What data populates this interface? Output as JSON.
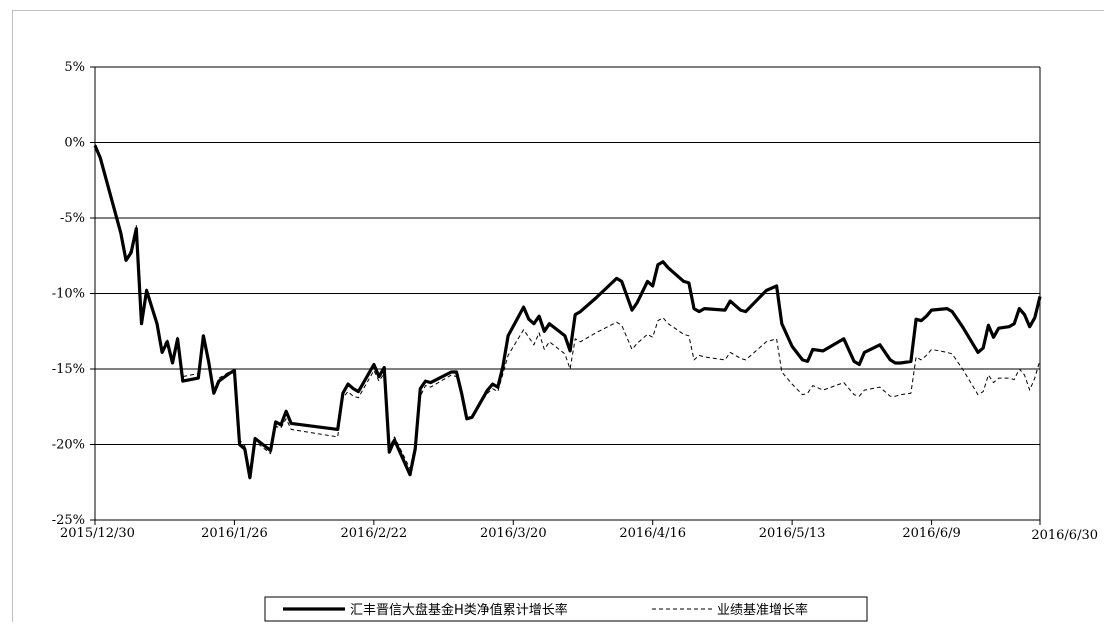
{
  "chart_data": {
    "type": "line",
    "title": "",
    "xlabel": "",
    "ylabel": "",
    "x_tick_labels": [
      "2015/12/30",
      "2016/1/26",
      "2016/2/22",
      "2016/3/20",
      "2016/4/16",
      "2016/5/13",
      "2016/6/9",
      "2016/6/30"
    ],
    "x_range": [
      "2015/12/30",
      "2016/6/30"
    ],
    "y_tick_labels": [
      "5%",
      "0%",
      "-5%",
      "-10%",
      "-15%",
      "-20%",
      "-25%"
    ],
    "ylim": [
      -25,
      5
    ],
    "y_unit": "%",
    "grid": "horizontal",
    "legend_position": "bottom",
    "series": [
      {
        "name": "汇丰晋信大盘基金H类净值累计增长率",
        "style": "solid-thick",
        "color": "#000000",
        "points": [
          [
            "2015/12/30",
            -0.2
          ],
          [
            "2015/12/31",
            -1.0
          ],
          [
            "2016/1/4",
            -6.0
          ],
          [
            "2016/1/5",
            -7.8
          ],
          [
            "2016/1/6",
            -7.3
          ],
          [
            "2016/1/7",
            -5.7
          ],
          [
            "2016/1/8",
            -12.0
          ],
          [
            "2016/1/9",
            -9.8
          ],
          [
            "2016/1/11",
            -12.0
          ],
          [
            "2016/1/12",
            -13.9
          ],
          [
            "2016/1/13",
            -13.2
          ],
          [
            "2016/1/14",
            -14.6
          ],
          [
            "2016/1/15",
            -13.0
          ],
          [
            "2016/1/16",
            -15.8
          ],
          [
            "2016/1/19",
            -15.6
          ],
          [
            "2016/1/20",
            -12.8
          ],
          [
            "2016/1/21",
            -14.5
          ],
          [
            "2016/1/22",
            -16.6
          ],
          [
            "2016/1/23",
            -15.8
          ],
          [
            "2016/1/25",
            -15.3
          ],
          [
            "2016/1/26",
            -15.1
          ],
          [
            "2016/1/27",
            -20.0
          ],
          [
            "2016/1/28",
            -20.3
          ],
          [
            "2016/1/29",
            -22.2
          ],
          [
            "2016/1/30",
            -19.6
          ],
          [
            "2016/2/2",
            -20.4
          ],
          [
            "2016/2/3",
            -18.5
          ],
          [
            "2016/2/4",
            -18.7
          ],
          [
            "2016/2/5",
            -17.8
          ],
          [
            "2016/2/6",
            -18.6
          ],
          [
            "2016/2/15",
            -19.0
          ],
          [
            "2016/2/16",
            -16.6
          ],
          [
            "2016/2/17",
            -16.0
          ],
          [
            "2016/2/18",
            -16.3
          ],
          [
            "2016/2/19",
            -16.5
          ],
          [
            "2016/2/22",
            -14.7
          ],
          [
            "2016/2/23",
            -15.5
          ],
          [
            "2016/2/24",
            -14.9
          ],
          [
            "2016/2/25",
            -20.5
          ],
          [
            "2016/2/26",
            -19.7
          ],
          [
            "2016/2/29",
            -22.0
          ],
          [
            "2016/3/1",
            -20.3
          ],
          [
            "2016/3/2",
            -16.3
          ],
          [
            "2016/3/3",
            -15.8
          ],
          [
            "2016/3/4",
            -15.9
          ],
          [
            "2016/3/8",
            -15.2
          ],
          [
            "2016/3/9",
            -15.2
          ],
          [
            "2016/3/10",
            -16.6
          ],
          [
            "2016/3/11",
            -18.3
          ],
          [
            "2016/3/12",
            -18.2
          ],
          [
            "2016/3/15",
            -16.4
          ],
          [
            "2016/3/16",
            -16.0
          ],
          [
            "2016/3/17",
            -16.2
          ],
          [
            "2016/3/18",
            -14.8
          ],
          [
            "2016/3/19",
            -12.8
          ],
          [
            "2016/3/22",
            -10.9
          ],
          [
            "2016/3/23",
            -11.7
          ],
          [
            "2016/3/24",
            -12.0
          ],
          [
            "2016/3/25",
            -11.5
          ],
          [
            "2016/3/26",
            -12.5
          ],
          [
            "2016/3/27",
            -12.0
          ],
          [
            "2016/3/30",
            -12.8
          ],
          [
            "2016/3/31",
            -13.8
          ],
          [
            "2016/4/1",
            -11.4
          ],
          [
            "2016/4/2",
            -11.2
          ],
          [
            "2016/4/5",
            -10.3
          ],
          [
            "2016/4/9",
            -9.0
          ],
          [
            "2016/4/10",
            -9.2
          ],
          [
            "2016/4/12",
            -11.1
          ],
          [
            "2016/4/13",
            -10.6
          ],
          [
            "2016/4/15",
            -9.2
          ],
          [
            "2016/4/16",
            -9.5
          ],
          [
            "2016/4/17",
            -8.1
          ],
          [
            "2016/4/18",
            -7.9
          ],
          [
            "2016/4/19",
            -8.3
          ],
          [
            "2016/4/22",
            -9.2
          ],
          [
            "2016/4/23",
            -9.3
          ],
          [
            "2016/4/24",
            -11.0
          ],
          [
            "2016/4/25",
            -11.2
          ],
          [
            "2016/4/26",
            -11.0
          ],
          [
            "2016/4/30",
            -11.1
          ],
          [
            "2016/5/1",
            -10.5
          ],
          [
            "2016/5/3",
            -11.1
          ],
          [
            "2016/5/4",
            -11.2
          ],
          [
            "2016/5/8",
            -9.8
          ],
          [
            "2016/5/10",
            -9.5
          ],
          [
            "2016/5/11",
            -12.0
          ],
          [
            "2016/5/13",
            -13.5
          ],
          [
            "2016/5/15",
            -14.4
          ],
          [
            "2016/5/16",
            -14.5
          ],
          [
            "2016/5/17",
            -13.7
          ],
          [
            "2016/5/19",
            -13.8
          ],
          [
            "2016/5/23",
            -13.0
          ],
          [
            "2016/5/25",
            -14.5
          ],
          [
            "2016/5/26",
            -14.7
          ],
          [
            "2016/5/27",
            -13.9
          ],
          [
            "2016/5/30",
            -13.4
          ],
          [
            "2016/6/1",
            -14.4
          ],
          [
            "2016/6/2",
            -14.6
          ],
          [
            "2016/6/3",
            -14.6
          ],
          [
            "2016/6/5",
            -14.5
          ],
          [
            "2016/6/6",
            -11.7
          ],
          [
            "2016/6/7",
            -11.8
          ],
          [
            "2016/6/8",
            -11.5
          ],
          [
            "2016/6/9",
            -11.1
          ],
          [
            "2016/6/12",
            -11.0
          ],
          [
            "2016/6/13",
            -11.2
          ],
          [
            "2016/6/15",
            -12.2
          ],
          [
            "2016/6/18",
            -13.9
          ],
          [
            "2016/6/19",
            -13.6
          ],
          [
            "2016/6/20",
            -12.1
          ],
          [
            "2016/6/21",
            -12.9
          ],
          [
            "2016/6/22",
            -12.3
          ],
          [
            "2016/6/24",
            -12.2
          ],
          [
            "2016/6/25",
            -12.0
          ],
          [
            "2016/6/26",
            -11.0
          ],
          [
            "2016/6/27",
            -11.4
          ],
          [
            "2016/6/28",
            -12.2
          ],
          [
            "2016/6/29",
            -11.6
          ],
          [
            "2016/6/30",
            -10.2
          ]
        ]
      },
      {
        "name": "业绩基准增长率",
        "style": "dashed-thin",
        "color": "#000000",
        "points": [
          [
            "2015/12/30",
            -0.1
          ],
          [
            "2015/12/31",
            -0.9
          ],
          [
            "2016/1/4",
            -5.8
          ],
          [
            "2016/1/5",
            -7.7
          ],
          [
            "2016/1/6",
            -7.1
          ],
          [
            "2016/1/7",
            -5.5
          ],
          [
            "2016/1/8",
            -11.8
          ],
          [
            "2016/1/9",
            -9.7
          ],
          [
            "2016/1/11",
            -11.8
          ],
          [
            "2016/1/12",
            -13.7
          ],
          [
            "2016/1/13",
            -13.0
          ],
          [
            "2016/1/14",
            -14.4
          ],
          [
            "2016/1/15",
            -12.9
          ],
          [
            "2016/1/16",
            -15.5
          ],
          [
            "2016/1/19",
            -15.3
          ],
          [
            "2016/1/20",
            -12.9
          ],
          [
            "2016/1/21",
            -14.3
          ],
          [
            "2016/1/22",
            -16.4
          ],
          [
            "2016/1/23",
            -15.6
          ],
          [
            "2016/1/25",
            -15.2
          ],
          [
            "2016/1/26",
            -15.2
          ],
          [
            "2016/1/27",
            -19.7
          ],
          [
            "2016/1/28",
            -20.1
          ],
          [
            "2016/1/29",
            -21.8
          ],
          [
            "2016/1/30",
            -19.8
          ],
          [
            "2016/2/2",
            -20.6
          ],
          [
            "2016/2/3",
            -18.8
          ],
          [
            "2016/2/4",
            -18.9
          ],
          [
            "2016/2/5",
            -18.3
          ],
          [
            "2016/2/6",
            -19.0
          ],
          [
            "2016/2/15",
            -19.5
          ],
          [
            "2016/2/16",
            -16.9
          ],
          [
            "2016/2/17",
            -16.5
          ],
          [
            "2016/2/18",
            -16.8
          ],
          [
            "2016/2/19",
            -16.9
          ],
          [
            "2016/2/22",
            -15.1
          ],
          [
            "2016/2/23",
            -15.8
          ],
          [
            "2016/2/24",
            -15.3
          ],
          [
            "2016/2/25",
            -20.2
          ],
          [
            "2016/2/26",
            -19.5
          ],
          [
            "2016/2/29",
            -21.6
          ],
          [
            "2016/3/1",
            -20.0
          ],
          [
            "2016/3/2",
            -16.8
          ],
          [
            "2016/3/3",
            -16.1
          ],
          [
            "2016/3/4",
            -16.2
          ],
          [
            "2016/3/8",
            -15.4
          ],
          [
            "2016/3/9",
            -15.5
          ],
          [
            "2016/3/10",
            -16.7
          ],
          [
            "2016/3/11",
            -18.2
          ],
          [
            "2016/3/12",
            -18.1
          ],
          [
            "2016/3/15",
            -16.6
          ],
          [
            "2016/3/16",
            -16.3
          ],
          [
            "2016/3/17",
            -16.5
          ],
          [
            "2016/3/18",
            -15.3
          ],
          [
            "2016/3/19",
            -14.1
          ],
          [
            "2016/3/22",
            -12.4
          ],
          [
            "2016/3/23",
            -12.9
          ],
          [
            "2016/3/24",
            -13.4
          ],
          [
            "2016/3/25",
            -12.6
          ],
          [
            "2016/3/26",
            -13.7
          ],
          [
            "2016/3/27",
            -13.2
          ],
          [
            "2016/3/30",
            -14.0
          ],
          [
            "2016/3/31",
            -15.0
          ],
          [
            "2016/4/1",
            -13.0
          ],
          [
            "2016/4/2",
            -13.2
          ],
          [
            "2016/4/5",
            -12.6
          ],
          [
            "2016/4/9",
            -11.9
          ],
          [
            "2016/4/10",
            -12.1
          ],
          [
            "2016/4/12",
            -13.7
          ],
          [
            "2016/4/13",
            -13.3
          ],
          [
            "2016/4/15",
            -12.7
          ],
          [
            "2016/4/16",
            -12.9
          ],
          [
            "2016/4/17",
            -11.8
          ],
          [
            "2016/4/18",
            -11.6
          ],
          [
            "2016/4/19",
            -12.0
          ],
          [
            "2016/4/22",
            -12.7
          ],
          [
            "2016/4/23",
            -12.8
          ],
          [
            "2016/4/24",
            -14.4
          ],
          [
            "2016/4/25",
            -14.1
          ],
          [
            "2016/4/26",
            -14.2
          ],
          [
            "2016/4/30",
            -14.4
          ],
          [
            "2016/5/1",
            -13.9
          ],
          [
            "2016/5/3",
            -14.3
          ],
          [
            "2016/5/4",
            -14.4
          ],
          [
            "2016/5/8",
            -13.2
          ],
          [
            "2016/5/10",
            -13.0
          ],
          [
            "2016/5/11",
            -15.2
          ],
          [
            "2016/5/13",
            -16.0
          ],
          [
            "2016/5/15",
            -16.7
          ],
          [
            "2016/5/16",
            -16.6
          ],
          [
            "2016/5/17",
            -16.1
          ],
          [
            "2016/5/19",
            -16.4
          ],
          [
            "2016/5/23",
            -15.9
          ],
          [
            "2016/5/25",
            -16.7
          ],
          [
            "2016/5/26",
            -16.8
          ],
          [
            "2016/5/27",
            -16.4
          ],
          [
            "2016/5/30",
            -16.2
          ],
          [
            "2016/6/1",
            -16.8
          ],
          [
            "2016/6/2",
            -16.8
          ],
          [
            "2016/6/3",
            -16.7
          ],
          [
            "2016/6/5",
            -16.6
          ],
          [
            "2016/6/6",
            -14.2
          ],
          [
            "2016/6/7",
            -14.4
          ],
          [
            "2016/6/8",
            -14.1
          ],
          [
            "2016/6/9",
            -13.7
          ],
          [
            "2016/6/12",
            -13.9
          ],
          [
            "2016/6/13",
            -14.0
          ],
          [
            "2016/6/15",
            -15.0
          ],
          [
            "2016/6/18",
            -16.7
          ],
          [
            "2016/6/19",
            -16.5
          ],
          [
            "2016/6/20",
            -15.4
          ],
          [
            "2016/6/21",
            -15.9
          ],
          [
            "2016/6/22",
            -15.6
          ],
          [
            "2016/6/24",
            -15.6
          ],
          [
            "2016/6/25",
            -15.7
          ],
          [
            "2016/6/26",
            -15.0
          ],
          [
            "2016/6/27",
            -15.4
          ],
          [
            "2016/6/28",
            -16.4
          ],
          [
            "2016/6/29",
            -15.6
          ],
          [
            "2016/6/30",
            -14.4
          ]
        ]
      }
    ]
  }
}
